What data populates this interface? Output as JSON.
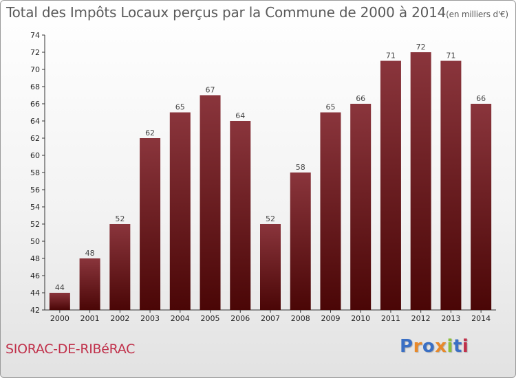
{
  "title": {
    "main": "Total des Impôts Locaux perçus par la Commune de 2000 à 2014",
    "unit": "(en milliers d'€)"
  },
  "commune": "SIORAC-DE-RIBéRAC",
  "logo": {
    "text": "Proxiti",
    "colors": [
      "#3a6fc4",
      "#e8892a",
      "#3a6fc4",
      "#e8892a",
      "#8cbf3a",
      "#3a6fc4",
      "#c0304a"
    ]
  },
  "colors": {
    "bar_top": "#8a353c",
    "bar_bottom": "#4a0606",
    "axis": "#333333"
  },
  "chart_data": {
    "type": "bar",
    "title": "Total des Impôts Locaux perçus par la Commune de 2000 à 2014",
    "xlabel": "",
    "ylabel": "(en milliers d'€)",
    "ylim": [
      42,
      74
    ],
    "yticks": [
      42,
      44,
      46,
      48,
      50,
      52,
      54,
      56,
      58,
      60,
      62,
      64,
      66,
      68,
      70,
      72,
      74
    ],
    "categories": [
      "2000",
      "2001",
      "2002",
      "2003",
      "2004",
      "2005",
      "2006",
      "2007",
      "2008",
      "2009",
      "2010",
      "2011",
      "2012",
      "2013",
      "2014"
    ],
    "values": [
      44,
      48,
      52,
      62,
      65,
      67,
      64,
      52,
      58,
      65,
      66,
      71,
      72,
      71,
      66
    ],
    "grid": false,
    "legend": "none"
  }
}
